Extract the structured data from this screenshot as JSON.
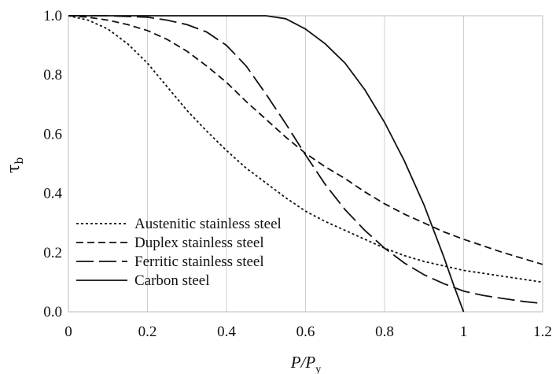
{
  "chart_data": {
    "type": "line",
    "title": "",
    "xlabel": "P/P",
    "xlabel_sub": "y",
    "ylabel": "τ",
    "ylabel_sub": "b",
    "xlim": [
      0,
      1.2
    ],
    "ylim": [
      0,
      1.0
    ],
    "xticks": [
      "0",
      "0.2",
      "0.4",
      "0.6",
      "0.8",
      "1",
      "1.2"
    ],
    "yticks": [
      "0.0",
      "0.2",
      "0.4",
      "0.6",
      "0.8",
      "1.0"
    ],
    "grid": "vertical",
    "legend_position": "bottom-left",
    "series": [
      {
        "name": "Austenitic stainless steel",
        "dash": "3,3",
        "points": [
          [
            0,
            1.0
          ],
          [
            0.05,
            0.985
          ],
          [
            0.1,
            0.955
          ],
          [
            0.15,
            0.905
          ],
          [
            0.2,
            0.84
          ],
          [
            0.25,
            0.76
          ],
          [
            0.3,
            0.68
          ],
          [
            0.35,
            0.61
          ],
          [
            0.4,
            0.545
          ],
          [
            0.45,
            0.485
          ],
          [
            0.5,
            0.435
          ],
          [
            0.55,
            0.385
          ],
          [
            0.6,
            0.34
          ],
          [
            0.65,
            0.305
          ],
          [
            0.7,
            0.275
          ],
          [
            0.75,
            0.245
          ],
          [
            0.8,
            0.215
          ],
          [
            0.85,
            0.19
          ],
          [
            0.9,
            0.17
          ],
          [
            0.95,
            0.155
          ],
          [
            1.0,
            0.14
          ],
          [
            1.1,
            0.12
          ],
          [
            1.2,
            0.1
          ]
        ]
      },
      {
        "name": "Duplex stainless steel",
        "dash": "9,5",
        "points": [
          [
            0,
            1.0
          ],
          [
            0.05,
            0.995
          ],
          [
            0.1,
            0.985
          ],
          [
            0.15,
            0.97
          ],
          [
            0.2,
            0.95
          ],
          [
            0.25,
            0.92
          ],
          [
            0.3,
            0.88
          ],
          [
            0.35,
            0.83
          ],
          [
            0.4,
            0.775
          ],
          [
            0.45,
            0.71
          ],
          [
            0.5,
            0.65
          ],
          [
            0.55,
            0.59
          ],
          [
            0.6,
            0.535
          ],
          [
            0.65,
            0.49
          ],
          [
            0.7,
            0.45
          ],
          [
            0.75,
            0.405
          ],
          [
            0.8,
            0.365
          ],
          [
            0.85,
            0.33
          ],
          [
            0.9,
            0.3
          ],
          [
            0.95,
            0.27
          ],
          [
            1.0,
            0.245
          ],
          [
            1.1,
            0.2
          ],
          [
            1.2,
            0.16
          ]
        ]
      },
      {
        "name": "Ferritic stainless steel",
        "dash": "22,7",
        "points": [
          [
            0,
            1.0
          ],
          [
            0.1,
            1.0
          ],
          [
            0.2,
            0.995
          ],
          [
            0.25,
            0.985
          ],
          [
            0.3,
            0.97
          ],
          [
            0.35,
            0.945
          ],
          [
            0.4,
            0.9
          ],
          [
            0.45,
            0.83
          ],
          [
            0.5,
            0.735
          ],
          [
            0.55,
            0.635
          ],
          [
            0.6,
            0.53
          ],
          [
            0.65,
            0.43
          ],
          [
            0.7,
            0.345
          ],
          [
            0.75,
            0.275
          ],
          [
            0.8,
            0.215
          ],
          [
            0.85,
            0.165
          ],
          [
            0.9,
            0.125
          ],
          [
            0.95,
            0.095
          ],
          [
            1.0,
            0.07
          ],
          [
            1.05,
            0.055
          ],
          [
            1.1,
            0.045
          ],
          [
            1.15,
            0.035
          ],
          [
            1.2,
            0.028
          ]
        ]
      },
      {
        "name": "Carbon steel",
        "dash": "",
        "points": [
          [
            0,
            1.0
          ],
          [
            0.3,
            1.0
          ],
          [
            0.5,
            1.0
          ],
          [
            0.55,
            0.99
          ],
          [
            0.6,
            0.955
          ],
          [
            0.65,
            0.905
          ],
          [
            0.7,
            0.84
          ],
          [
            0.75,
            0.75
          ],
          [
            0.8,
            0.64
          ],
          [
            0.85,
            0.51
          ],
          [
            0.9,
            0.36
          ],
          [
            0.95,
            0.185
          ],
          [
            0.975,
            0.09
          ],
          [
            1.0,
            0.0
          ]
        ]
      }
    ]
  }
}
